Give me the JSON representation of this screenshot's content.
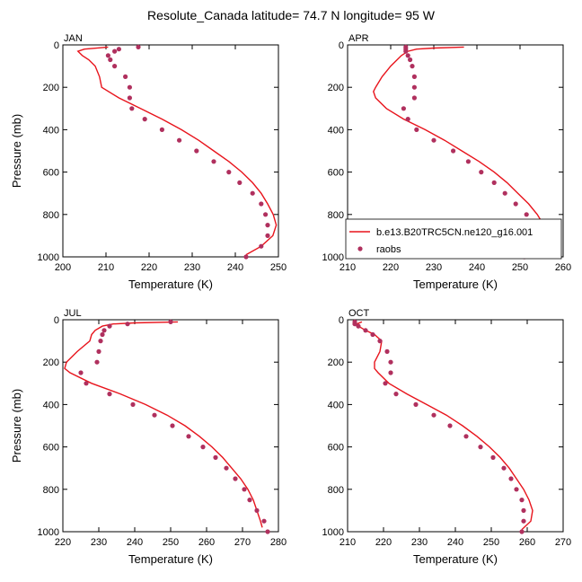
{
  "title": "Resolute_Canada  latitude= 74.7 N longitude= 95 W",
  "colors": {
    "model_line": "#e8141c",
    "obs_marker": "#b0305e",
    "axis": "#000000"
  },
  "legend": {
    "model_label": "b.e13.B20TRC5CN.ne120_g16.001",
    "obs_label": "raobs"
  },
  "chart_data": [
    {
      "type": "line",
      "panel_label": "JAN",
      "xlabel": "Temperature (K)",
      "ylabel": "Pressure (mb)",
      "xlim": [
        200,
        250
      ],
      "ylim": [
        1000,
        0
      ],
      "xticks": [
        200,
        210,
        220,
        230,
        240,
        250
      ],
      "yticks": [
        0,
        200,
        400,
        600,
        800,
        1000
      ],
      "model": {
        "pressure": [
          10,
          20,
          30,
          50,
          70,
          100,
          150,
          200,
          250,
          300,
          350,
          400,
          450,
          500,
          550,
          600,
          650,
          700,
          750,
          800,
          850,
          900,
          950,
          990
        ],
        "temperature": [
          210.5,
          205,
          203.5,
          204.5,
          206,
          207.5,
          208.5,
          209,
          213,
          218,
          223,
          227.5,
          231.5,
          235,
          238.5,
          241.5,
          244,
          246,
          247.5,
          248.8,
          249.5,
          248.7,
          246,
          242.5
        ]
      },
      "obs": {
        "pressure": [
          10,
          20,
          30,
          50,
          70,
          100,
          150,
          200,
          250,
          300,
          350,
          400,
          450,
          500,
          550,
          600,
          650,
          700,
          750,
          800,
          850,
          900,
          950,
          1000
        ],
        "temperature": [
          217.5,
          213,
          212,
          210.5,
          211,
          212,
          214.5,
          215.5,
          215.5,
          216,
          219,
          223,
          227,
          231,
          235,
          238.5,
          241,
          244,
          246,
          247,
          247.5,
          247.5,
          246,
          242.5
        ]
      }
    },
    {
      "type": "line",
      "panel_label": "APR",
      "xlabel": "Temperature (K)",
      "ylabel": "",
      "xlim": [
        210,
        260
      ],
      "ylim": [
        1000,
        0
      ],
      "xticks": [
        210,
        220,
        230,
        240,
        250,
        260
      ],
      "yticks": [
        0,
        200,
        400,
        600,
        800,
        1000
      ],
      "model": {
        "pressure": [
          10,
          15,
          20,
          30,
          50,
          70,
          100,
          150,
          200,
          220,
          250,
          300,
          350,
          400,
          450,
          500,
          550,
          600,
          650,
          700,
          750,
          800,
          850,
          900,
          950,
          990
        ],
        "temperature": [
          237,
          230,
          226,
          224,
          222.5,
          221.5,
          220,
          218,
          216.5,
          216,
          216.5,
          219,
          223,
          228,
          232.5,
          236.5,
          240.5,
          244,
          247,
          249.5,
          252,
          254,
          255.5,
          256,
          255,
          251.5
        ]
      },
      "obs": {
        "pressure": [
          10,
          20,
          30,
          50,
          70,
          100,
          150,
          200,
          250,
          300,
          350,
          400,
          450,
          500,
          550,
          600,
          650,
          700,
          750,
          800,
          850,
          900,
          950,
          1000
        ],
        "temperature": [
          223.5,
          223.5,
          223.5,
          224,
          224.5,
          225,
          225.5,
          225.5,
          225.5,
          223,
          224,
          226,
          230,
          234.5,
          238,
          241,
          244,
          246.5,
          249,
          251.5,
          253,
          253.5,
          253.5,
          251
        ]
      }
    },
    {
      "type": "line",
      "panel_label": "JUL",
      "xlabel": "Temperature (K)",
      "ylabel": "Pressure (mb)",
      "xlim": [
        220,
        280
      ],
      "ylim": [
        1000,
        0
      ],
      "xticks": [
        220,
        230,
        240,
        250,
        260,
        270,
        280
      ],
      "yticks": [
        0,
        200,
        400,
        600,
        800,
        1000
      ],
      "model": {
        "pressure": [
          10,
          15,
          20,
          30,
          50,
          70,
          100,
          150,
          200,
          230,
          250,
          300,
          350,
          400,
          450,
          500,
          550,
          600,
          650,
          700,
          750,
          800,
          850,
          900,
          950,
          980
        ],
        "temperature": [
          252,
          240,
          234,
          231,
          229,
          228,
          227.5,
          224,
          221,
          220.5,
          222,
          228,
          236,
          243,
          249,
          254,
          258,
          261.5,
          264.5,
          267,
          269.5,
          271.5,
          273,
          274,
          275,
          275.5
        ]
      },
      "obs": {
        "pressure": [
          10,
          20,
          30,
          50,
          70,
          100,
          150,
          200,
          250,
          300,
          350,
          400,
          450,
          500,
          550,
          600,
          650,
          700,
          750,
          800,
          850,
          900,
          950,
          1000
        ],
        "temperature": [
          250,
          238,
          233,
          231.5,
          231,
          230.5,
          230,
          229.5,
          225,
          226.5,
          233,
          239.5,
          245.5,
          250.5,
          255,
          259,
          262.5,
          265.5,
          268,
          270.5,
          272,
          274,
          276,
          277
        ]
      }
    },
    {
      "type": "line",
      "panel_label": "OCT",
      "xlabel": "Temperature (K)",
      "ylabel": "",
      "xlim": [
        210,
        270
      ],
      "ylim": [
        1000,
        0
      ],
      "xticks": [
        210,
        220,
        230,
        240,
        250,
        260,
        270
      ],
      "yticks": [
        0,
        200,
        400,
        600,
        800,
        1000
      ],
      "model": {
        "pressure": [
          10,
          20,
          30,
          50,
          70,
          100,
          150,
          200,
          230,
          250,
          300,
          350,
          400,
          450,
          500,
          550,
          600,
          650,
          700,
          750,
          800,
          850,
          900,
          950,
          990
        ],
        "temperature": [
          214,
          212.5,
          213,
          215,
          217.5,
          219.5,
          219,
          217.5,
          217.5,
          218.5,
          221.5,
          226.5,
          232,
          237.5,
          242,
          246,
          249.5,
          252.5,
          255,
          257,
          259,
          260.5,
          261.5,
          261,
          258.5
        ]
      },
      "obs": {
        "pressure": [
          10,
          20,
          30,
          50,
          70,
          100,
          150,
          200,
          250,
          300,
          350,
          400,
          450,
          500,
          550,
          600,
          650,
          700,
          750,
          800,
          850,
          900,
          950,
          1000
        ],
        "temperature": [
          212,
          212,
          213,
          215,
          217,
          219,
          221,
          222,
          222,
          220.5,
          223.5,
          229,
          234,
          238.5,
          243,
          247,
          250.5,
          253.5,
          255.5,
          257,
          258.5,
          259,
          259,
          258.5
        ]
      }
    }
  ]
}
